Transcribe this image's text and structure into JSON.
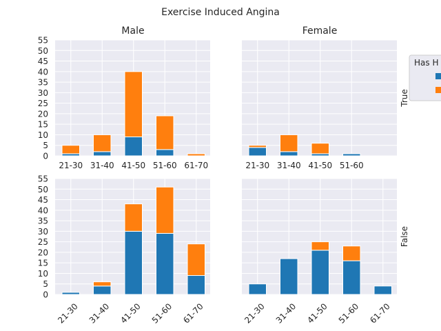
{
  "figure": {
    "title": "Exercise Induced Angina",
    "col_titles": [
      "Male",
      "Female"
    ],
    "row_labels": [
      "True",
      "False"
    ],
    "legend_title": "Has H",
    "colors": {
      "series0": "#1f77b4",
      "series1": "#ff7f0e",
      "panel_bg": "#eaeaf2",
      "grid": "#ffffff"
    }
  },
  "chart_data": [
    {
      "type": "bar",
      "stacked": true,
      "panel": "Male / True",
      "categories": [
        "21-30",
        "31-40",
        "41-50",
        "51-60",
        "61-70"
      ],
      "series": [
        {
          "values": [
            1,
            2,
            9,
            3,
            0
          ]
        },
        {
          "values": [
            4,
            8,
            31,
            16,
            1
          ]
        }
      ],
      "ylim": [
        0,
        55
      ],
      "yticks": [
        0,
        5,
        10,
        15,
        20,
        25,
        30,
        35,
        40,
        45,
        50,
        55
      ],
      "grid": true
    },
    {
      "type": "bar",
      "stacked": true,
      "panel": "Female / True",
      "categories": [
        "21-30",
        "31-40",
        "41-50",
        "51-60"
      ],
      "series": [
        {
          "values": [
            4,
            2,
            1,
            1
          ]
        },
        {
          "values": [
            1,
            8,
            5,
            0
          ]
        }
      ],
      "ylim": [
        0,
        55
      ],
      "grid": true
    },
    {
      "type": "bar",
      "stacked": true,
      "panel": "Male / False",
      "categories": [
        "21-30",
        "31-40",
        "41-50",
        "51-60",
        "61-70"
      ],
      "series": [
        {
          "values": [
            1,
            4,
            30,
            29,
            9
          ]
        },
        {
          "values": [
            0,
            2,
            13,
            22,
            15
          ]
        }
      ],
      "ylim": [
        0,
        55
      ],
      "yticks": [
        0,
        5,
        10,
        15,
        20,
        25,
        30,
        35,
        40,
        45,
        50,
        55
      ],
      "grid": true
    },
    {
      "type": "bar",
      "stacked": true,
      "panel": "Female / False",
      "categories": [
        "21-30",
        "31-40",
        "41-50",
        "51-60",
        "61-70"
      ],
      "series": [
        {
          "values": [
            5,
            17,
            21,
            16,
            4
          ]
        },
        {
          "values": [
            0,
            0,
            4,
            7,
            0
          ]
        }
      ],
      "ylim": [
        0,
        55
      ],
      "grid": true
    }
  ]
}
